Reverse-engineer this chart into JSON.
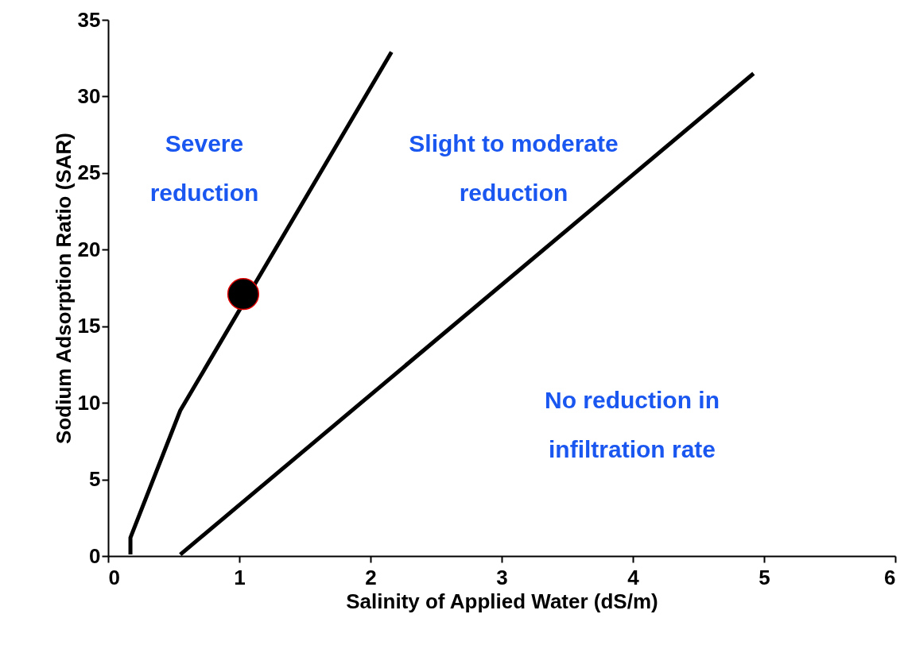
{
  "chart_data": {
    "type": "line",
    "xlabel": "Salinity of Applied Water (dS/m)",
    "ylabel": "Sodium Adsorption Ratio (SAR)",
    "xlim": [
      0,
      6
    ],
    "ylim": [
      0,
      35
    ],
    "xticks": [
      0,
      1,
      2,
      3,
      4,
      5,
      6
    ],
    "yticks": [
      0,
      5,
      10,
      15,
      20,
      25,
      30,
      35
    ],
    "grid": false,
    "marker": "none",
    "line_style": "solid",
    "series": [
      {
        "color": "#000000",
        "x": [
          0.17,
          0.17,
          0.55,
          2.16
        ],
        "values": [
          0.1,
          1.2,
          9.5,
          32.9
        ]
      },
      {
        "color": "#000000",
        "x": [
          0.55,
          4.92
        ],
        "values": [
          0.1,
          31.5
        ]
      },
      {
        "type": "scatter",
        "marker": "circle",
        "color": "#000000",
        "x": [
          1.03
        ],
        "values": [
          17.1
        ]
      }
    ],
    "annotations": [
      "Severe\nreduction",
      "Slight to moderate\nreduction",
      "No reduction in\ninfiltration rate"
    ]
  }
}
